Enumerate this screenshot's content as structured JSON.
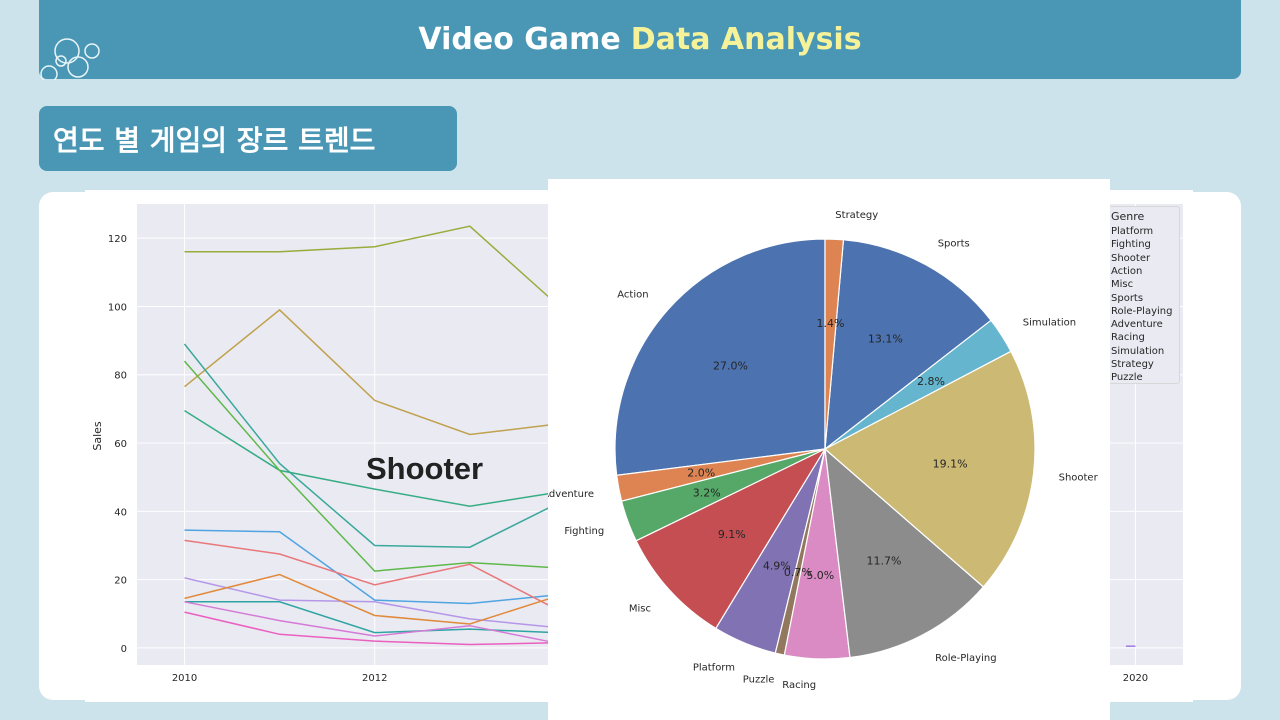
{
  "header": {
    "title_main": "Video Game",
    "title_highlight": "Data Analysis"
  },
  "section": {
    "title": "연도 별 게임의 장르 트렌드"
  },
  "overlay": {
    "label": "Shooter"
  },
  "line_chart": {
    "type": "line",
    "ylabel": "Sales",
    "x_ticks": [
      "2010",
      "2012",
      "2020"
    ],
    "y_ticks": [
      "0",
      "20",
      "40",
      "60",
      "80",
      "100",
      "120"
    ],
    "ylim": [
      -5,
      130
    ],
    "xlim": [
      2009.5,
      2020.5
    ],
    "grid": true,
    "legend": {
      "title": "Genre",
      "placement": "right",
      "items": [
        "Platform",
        "Fighting",
        "Shooter",
        "Action",
        "Misc",
        "Sports",
        "Role-Playing",
        "Adventure",
        "Racing",
        "Simulation",
        "Strategy",
        "Puzzle"
      ]
    },
    "series": [
      {
        "color": "#9aab3c",
        "x": [
          2010,
          2011,
          2012,
          2013,
          2013.9
        ],
        "y": [
          116,
          116,
          117.5,
          123.5,
          101
        ]
      },
      {
        "color": "#c0a24e",
        "x": [
          2010,
          2011,
          2012,
          2013,
          2013.9
        ],
        "y": [
          76.5,
          99,
          72.5,
          62.5,
          65.5
        ]
      },
      {
        "color": "#3aa89b",
        "x": [
          2010,
          2011,
          2012,
          2013,
          2013.9
        ],
        "y": [
          89,
          54,
          30,
          29.5,
          42
        ]
      },
      {
        "color": "#36ad84",
        "x": [
          2010,
          2011,
          2012,
          2013,
          2013.9
        ],
        "y": [
          69.5,
          52,
          46.5,
          41.5,
          45.5
        ]
      },
      {
        "color": "#5fb84a",
        "x": [
          2010,
          2011,
          2012,
          2013,
          2013.9
        ],
        "y": [
          84,
          52,
          22.5,
          25,
          23.5
        ]
      },
      {
        "color": "#4fa4e1",
        "x": [
          2010,
          2011,
          2012,
          2013,
          2013.9
        ],
        "y": [
          34.5,
          34,
          14,
          13,
          15.5
        ]
      },
      {
        "color": "#e8787b",
        "x": [
          2010,
          2011,
          2012,
          2013,
          2013.9
        ],
        "y": [
          31.5,
          27.5,
          18.5,
          24.5,
          11.5
        ]
      },
      {
        "color": "#b497e8",
        "x": [
          2010,
          2011,
          2012,
          2013,
          2013.9
        ],
        "y": [
          20.5,
          14,
          13.5,
          8.5,
          6
        ]
      },
      {
        "color": "#e08a3c",
        "x": [
          2010,
          2011,
          2012,
          2013,
          2013.9
        ],
        "y": [
          14.5,
          21.5,
          9.5,
          7,
          15
        ]
      },
      {
        "color": "#2fa5a2",
        "x": [
          2010,
          2011,
          2012,
          2013,
          2013.9
        ],
        "y": [
          13.5,
          13.5,
          4.5,
          5.5,
          4.5
        ]
      },
      {
        "color": "#d57ad6",
        "x": [
          2010,
          2011,
          2012,
          2013,
          2013.9
        ],
        "y": [
          13.5,
          8,
          3.5,
          6.5,
          1.5
        ]
      },
      {
        "color": "#ea5fc0",
        "x": [
          2010,
          2011,
          2012,
          2013,
          2013.9
        ],
        "y": [
          10.5,
          4,
          2,
          1,
          1.5
        ]
      },
      {
        "color": "#a57ae8",
        "x": [
          2019.9,
          2020
        ],
        "y": [
          0.5,
          0.5
        ]
      }
    ]
  },
  "chart_data": {
    "type": "pie",
    "categories": [
      "Action",
      "Adventure",
      "Fighting",
      "Misc",
      "Platform",
      "Puzzle",
      "Racing",
      "Role-Playing",
      "Shooter",
      "Simulation",
      "Sports",
      "Strategy"
    ],
    "values": [
      27.0,
      2.0,
      3.2,
      9.1,
      4.9,
      0.7,
      5.0,
      11.7,
      19.1,
      2.8,
      13.1,
      1.4
    ],
    "labels": [
      "27.0%",
      "2.0%",
      "3.2%",
      "9.1%",
      "4.9%",
      "0.7%",
      "5.0%",
      "11.7%",
      "19.1%",
      "2.8%",
      "13.1%",
      "1.4%"
    ],
    "colors": [
      "#4c72b0",
      "#dd8452",
      "#55a868",
      "#c44e52",
      "#8172b3",
      "#937860",
      "#da8bc3",
      "#8c8c8c",
      "#ccb974",
      "#64b5cd",
      "#4c72b0",
      "#dd8452"
    ]
  }
}
